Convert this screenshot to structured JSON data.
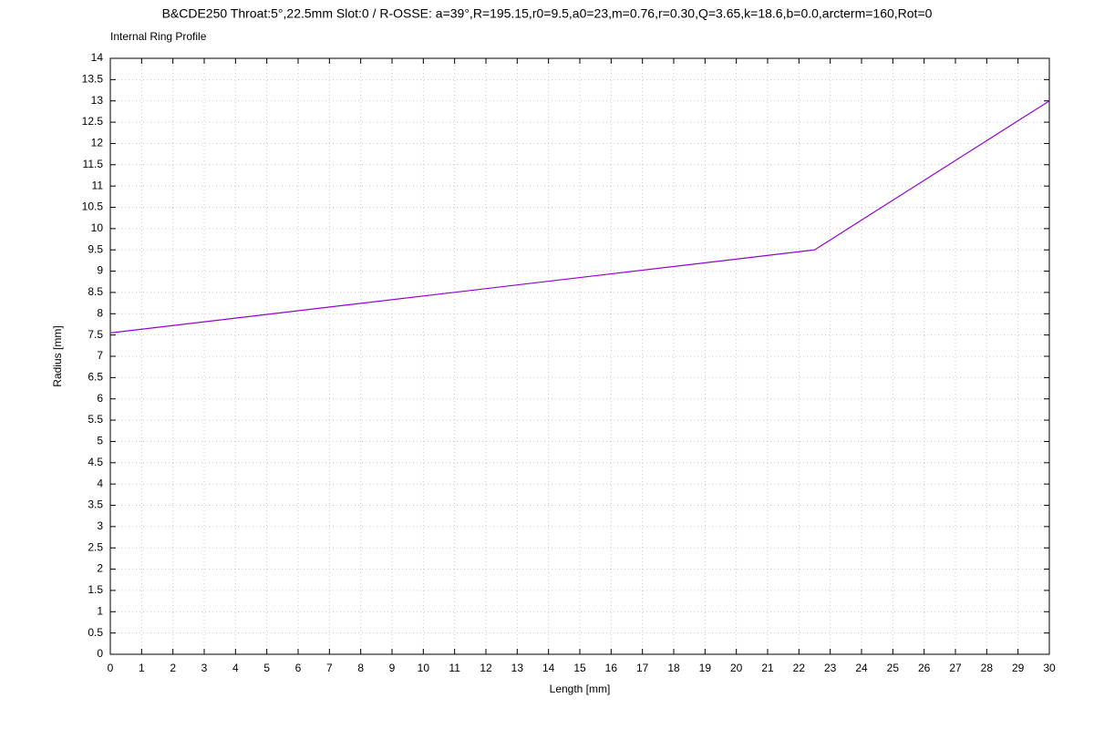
{
  "chart_data": {
    "type": "line",
    "title": "B&CDE250 Throat:5°,22.5mm Slot:0 / R-OSSE: a=39°,R=195.15,r0=9.5,a0=23,m=0.76,r=0.30,Q=3.65,k=18.6,b=0.0,arcterm=160,Rot=0",
    "subtitle": "Internal Ring Profile",
    "x_label": "Length [mm]",
    "y_label": "Radius [mm]",
    "x": [
      0,
      22.5,
      30
    ],
    "series": [
      {
        "name": "Internal Ring Profile",
        "color": "#9400d3",
        "values": [
          7.55,
          9.5,
          13
        ]
      }
    ],
    "xlim": [
      0,
      30
    ],
    "ylim": [
      0,
      14
    ],
    "xticks": [
      0,
      1,
      2,
      3,
      4,
      5,
      6,
      7,
      8,
      9,
      10,
      11,
      12,
      13,
      14,
      15,
      16,
      17,
      18,
      19,
      20,
      21,
      22,
      23,
      24,
      25,
      26,
      27,
      28,
      29,
      30
    ],
    "yticks": [
      0,
      0.5,
      1,
      1.5,
      2,
      2.5,
      3,
      3.5,
      4,
      4.5,
      5,
      5.5,
      6,
      6.5,
      7,
      7.5,
      8,
      8.5,
      9,
      9.5,
      10,
      10.5,
      11,
      11.5,
      12,
      12.5,
      13,
      13.5,
      14
    ],
    "grid": true
  }
}
